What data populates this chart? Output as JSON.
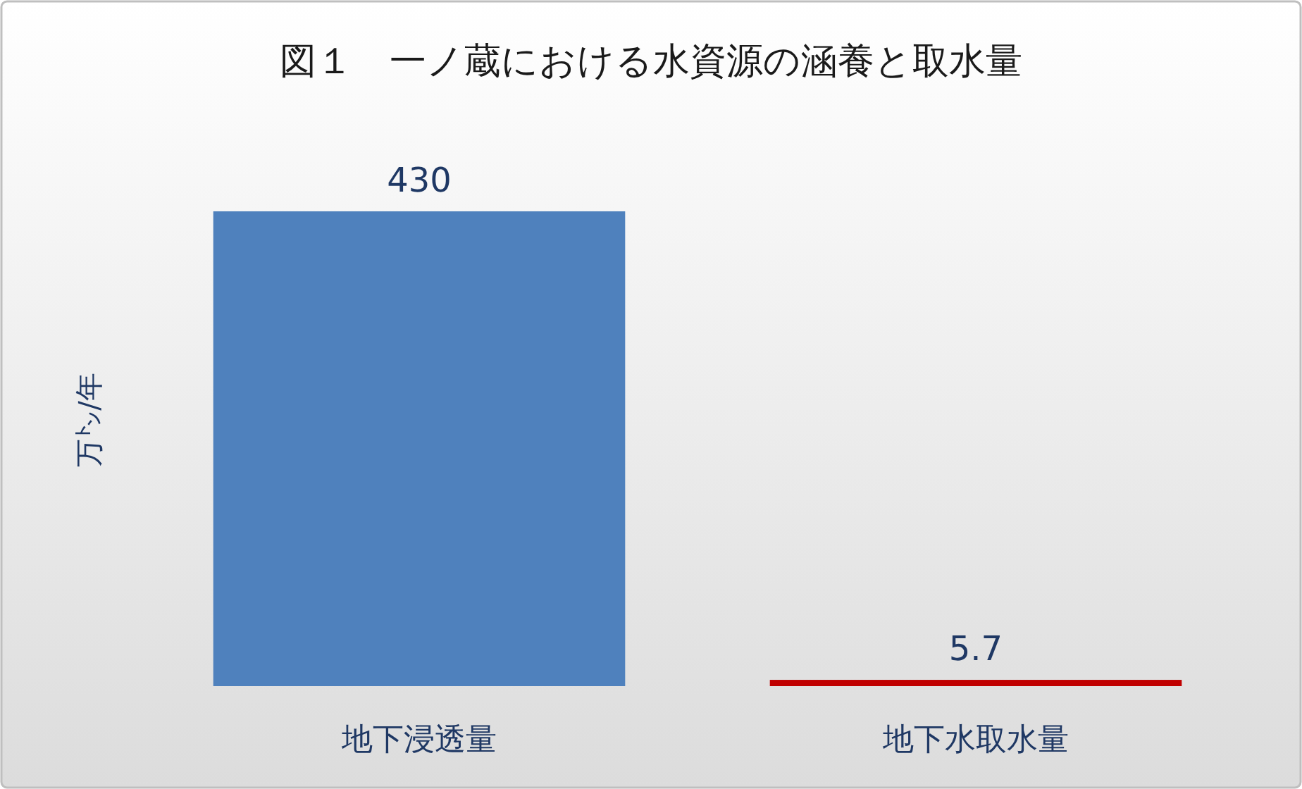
{
  "chart_data": {
    "type": "bar",
    "title": "図１　一ノ蔵における水資源の涵養と取水量",
    "ylabel": "万㌧/年",
    "categories": [
      "地下浸透量",
      "地下水取水量"
    ],
    "values": [
      430,
      5.7
    ],
    "colors": [
      "#4f81bd",
      "#c00000"
    ],
    "data_labels": true
  }
}
